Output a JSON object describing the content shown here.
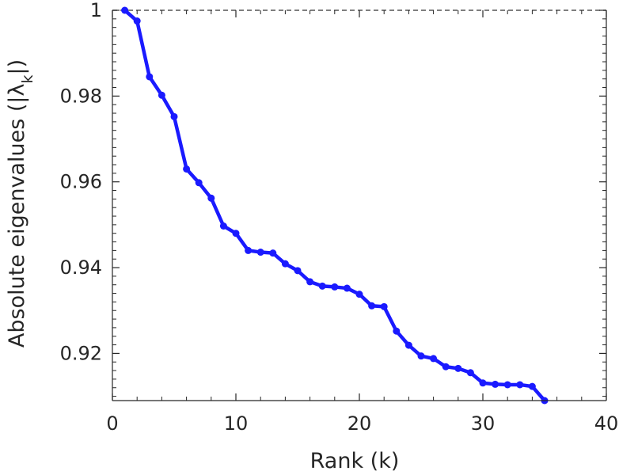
{
  "chart_data": {
    "type": "line",
    "xlabel": "Rank (k)",
    "ylabel": "Absolute eigenvalues (|λk|)",
    "ylabel_parts": {
      "main": "Absolute eigenvalues (|",
      "lambda": "λ",
      "subscript": "k",
      "close": "|)"
    },
    "xlim": [
      0,
      40
    ],
    "ylim": [
      0.909,
      1.0
    ],
    "xticks": [
      0,
      10,
      20,
      30,
      40
    ],
    "xtick_labels": [
      "0",
      "10",
      "20",
      "30",
      "40"
    ],
    "yticks": [
      0.92,
      0.94,
      0.96,
      0.98,
      1.0
    ],
    "ytick_labels": [
      "0.92",
      "0.94",
      "0.96",
      "0.98",
      "1"
    ],
    "grid": false,
    "reference_line": {
      "y": 1.0,
      "style": "dashed"
    },
    "colors": {
      "series": "#1a1aff",
      "axis": "#262626",
      "reference": "#555555"
    },
    "series": [
      {
        "x": [
          1,
          2,
          3,
          4,
          5,
          6,
          7,
          8,
          9,
          10,
          11,
          12,
          13,
          14,
          15,
          16,
          17,
          18,
          19,
          20,
          21,
          22,
          23,
          24,
          25,
          26,
          27,
          28,
          29,
          30,
          31,
          32,
          33,
          34,
          35
        ],
        "values": [
          1.0,
          0.9975,
          0.9845,
          0.9802,
          0.9752,
          0.963,
          0.9598,
          0.9562,
          0.9497,
          0.948,
          0.944,
          0.9436,
          0.9434,
          0.9409,
          0.9393,
          0.9367,
          0.9357,
          0.9355,
          0.9352,
          0.9338,
          0.9311,
          0.9309,
          0.9252,
          0.9219,
          0.9194,
          0.9188,
          0.9169,
          0.9165,
          0.9155,
          0.9131,
          0.9128,
          0.9127,
          0.9127,
          0.9123,
          0.909
        ]
      }
    ]
  }
}
